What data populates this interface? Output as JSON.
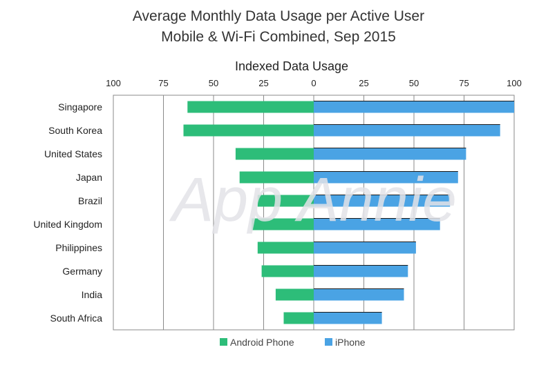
{
  "chart_data": {
    "type": "bar",
    "title": "Average Monthly Data Usage per Active User",
    "subtitle": "Mobile & Wi-Fi Combined, Sep 2015",
    "xlabel": "Indexed Data Usage",
    "ylabel": "",
    "xlim": [
      -100,
      100
    ],
    "tick_values": [
      -100,
      -75,
      -50,
      -25,
      0,
      25,
      50,
      75,
      100
    ],
    "tick_labels": [
      "100",
      "75",
      "50",
      "25",
      "0",
      "25",
      "50",
      "75",
      "100"
    ],
    "categories": [
      "Singapore",
      "South Korea",
      "United States",
      "Japan",
      "Brazil",
      "United Kingdom",
      "Philippines",
      "Germany",
      "India",
      "South Africa"
    ],
    "series": [
      {
        "name": "Android Phone",
        "color": "#2dbd79",
        "values": [
          63,
          65,
          39,
          37,
          28,
          31,
          28,
          26,
          19,
          15
        ]
      },
      {
        "name": "iPhone",
        "color": "#4aa3e4",
        "values": [
          100,
          93,
          76,
          72,
          68,
          63,
          51,
          47,
          45,
          34
        ]
      }
    ],
    "grid": true,
    "legend_position": "bottom-center",
    "watermark": "App Annie"
  }
}
